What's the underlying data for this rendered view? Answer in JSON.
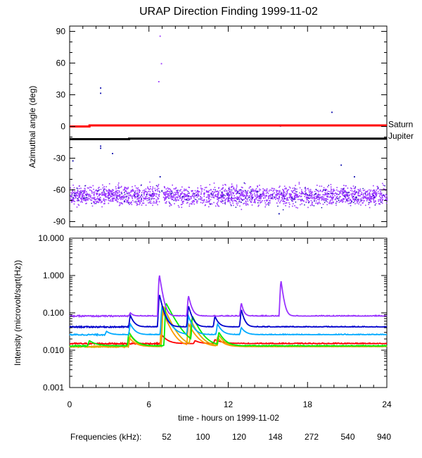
{
  "chart_data": [
    {
      "type": "scatter",
      "panel": "top",
      "title": "URAP Direction Finding  1999-11-02",
      "ylabel": "Azimuthal angle (deg)",
      "ylim": [
        -95,
        95
      ],
      "yticks": [
        90,
        60,
        30,
        0,
        -30,
        -60,
        -90
      ],
      "ytick_labels": [
        "90",
        "60",
        "30",
        "0",
        "-30",
        "-60",
        "-90"
      ],
      "xlim": [
        0,
        24
      ],
      "series": [
        {
          "name": "Saturn",
          "color": "#ff0000",
          "x": [
            0,
            1.5,
            1.5,
            24
          ],
          "y": [
            0,
            0,
            1,
            1
          ]
        },
        {
          "name": "Jupiter",
          "color": "#000000",
          "x": [
            0,
            4.5,
            4.5,
            24
          ],
          "y": [
            -12,
            -12,
            -11.5,
            -11.5
          ]
        }
      ],
      "labels": [
        {
          "text": "Saturn",
          "y": 2
        },
        {
          "text": "Jupiter",
          "y": -9
        }
      ],
      "scatter_band": {
        "color": "#9933ff",
        "center": -65,
        "spread": 8
      },
      "outliers": [
        {
          "x": 0.2,
          "y": -32
        },
        {
          "x": 2.3,
          "y": 37
        },
        {
          "x": 2.3,
          "y": 32
        },
        {
          "x": 2.3,
          "y": -18
        },
        {
          "x": 2.3,
          "y": -20
        },
        {
          "x": 3.2,
          "y": -25
        },
        {
          "x": 6.8,
          "y": 86
        },
        {
          "x": 6.9,
          "y": 60
        },
        {
          "x": 6.7,
          "y": 43
        },
        {
          "x": 6.8,
          "y": -47
        },
        {
          "x": 15.9,
          "y": 1
        },
        {
          "x": 19.8,
          "y": 14
        },
        {
          "x": 20.5,
          "y": -36
        },
        {
          "x": 21.5,
          "y": -47
        },
        {
          "x": 15.8,
          "y": -82
        }
      ]
    },
    {
      "type": "line",
      "panel": "bottom",
      "ylabel": "Intensity (microvolt/sqrt(Hz))",
      "yscale": "log",
      "ylim": [
        0.001,
        10
      ],
      "yticks": [
        10,
        1,
        0.1,
        0.01,
        0.001
      ],
      "ytick_labels": [
        "10.000",
        "1.000",
        "0.100",
        "0.010",
        "0.001"
      ],
      "xlabel": "time - hours on 1999-11-02",
      "xlim": [
        0,
        24
      ],
      "xticks": [
        0,
        6,
        12,
        18,
        24
      ],
      "xtick_labels": [
        "0",
        "6",
        "12",
        "18",
        "24"
      ],
      "legend_title": "Frequencies (kHz):",
      "series": [
        {
          "name": "52",
          "color": "#ff0000",
          "base": 0.015,
          "peaks": [
            [
              7.0,
              0.025,
              0.4
            ],
            [
              9.5,
              0.018,
              0.4
            ],
            [
              11.0,
              0.019,
              0.6
            ]
          ]
        },
        {
          "name": "100",
          "color": "#ff9900",
          "base": 0.0125,
          "peaks": [
            [
              4.5,
              0.022,
              0.4
            ],
            [
              7.0,
              0.12,
              0.45
            ],
            [
              9.0,
              0.05,
              0.5
            ],
            [
              11.2,
              0.022,
              0.4
            ]
          ]
        },
        {
          "name": "120",
          "color": "#ddaa00",
          "base": 0.0125,
          "peaks": [
            [
              4.6,
              0.025,
              0.4
            ],
            [
              7.1,
              0.15,
              0.5
            ],
            [
              9.2,
              0.06,
              0.5
            ],
            [
              11.3,
              0.025,
              0.4
            ]
          ]
        },
        {
          "name": "148",
          "color": "#00ee00",
          "base": 0.013,
          "peaks": [
            [
              1.5,
              0.018,
              0.5
            ],
            [
              4.5,
              0.03,
              0.4
            ],
            [
              7.3,
              0.18,
              0.6
            ],
            [
              9.3,
              0.08,
              0.5
            ],
            [
              11.3,
              0.03,
              0.4
            ]
          ]
        },
        {
          "name": "272",
          "color": "#00aaff",
          "base": 0.026,
          "peaks": [
            [
              2.8,
              0.032,
              0.3
            ],
            [
              4.6,
              0.05,
              0.3
            ],
            [
              7.0,
              0.15,
              0.4
            ],
            [
              9.0,
              0.08,
              0.3
            ],
            [
              11.2,
              0.05,
              0.3
            ],
            [
              13.0,
              0.04,
              0.3
            ]
          ]
        },
        {
          "name": "540",
          "color": "#0000cc",
          "base": 0.042,
          "peaks": [
            [
              4.6,
              0.085,
              0.25
            ],
            [
              6.8,
              0.3,
              0.25
            ],
            [
              9.0,
              0.15,
              0.25
            ],
            [
              11.0,
              0.08,
              0.25
            ],
            [
              13.0,
              0.12,
              0.2
            ]
          ]
        },
        {
          "name": "940",
          "color": "#9933ff",
          "base": 0.082,
          "peaks": [
            [
              4.6,
              0.1,
              0.2
            ],
            [
              6.8,
              1.0,
              0.18
            ],
            [
              9.0,
              0.28,
              0.2
            ],
            [
              13.0,
              0.18,
              0.15
            ],
            [
              16.0,
              0.7,
              0.15
            ]
          ]
        }
      ]
    }
  ]
}
